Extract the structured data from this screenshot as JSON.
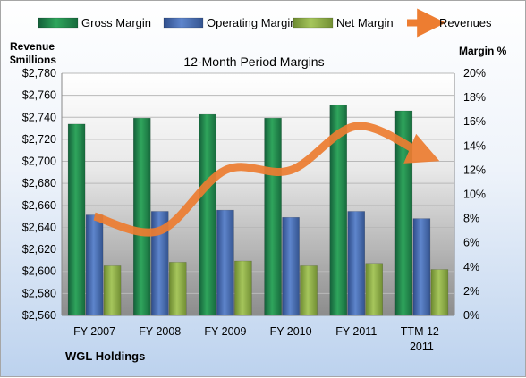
{
  "chart_data": {
    "type": "bar",
    "title": "12-Month Period Margins",
    "company": "WGL Holdings",
    "y_left_label": [
      "Revenue",
      "$millions"
    ],
    "y_right_label": "Margin %",
    "categories": [
      [
        "FY 2007"
      ],
      [
        "FY 2008"
      ],
      [
        "FY 2009"
      ],
      [
        "FY 2010"
      ],
      [
        "FY 2011"
      ],
      [
        "TTM 12-",
        "2011"
      ]
    ],
    "y_left": {
      "min": 2560,
      "max": 2780,
      "step": 20
    },
    "y_right": {
      "min": 0,
      "max": 20,
      "step": 2,
      "suffix": "%"
    },
    "grid": true,
    "legend_position": "top",
    "series": [
      {
        "name": "Gross Margin",
        "kind": "bar",
        "axis": "right",
        "color": "#1e8a4a",
        "values": [
          15.8,
          16.3,
          16.6,
          16.3,
          17.4,
          16.9
        ]
      },
      {
        "name": "Operating Margin",
        "kind": "bar",
        "axis": "right",
        "color": "#4a6fb5",
        "values": [
          8.3,
          8.6,
          8.7,
          8.1,
          8.6,
          8.0
        ]
      },
      {
        "name": "Net Margin",
        "kind": "bar",
        "axis": "right",
        "color": "#8fb04a",
        "values": [
          4.1,
          4.4,
          4.5,
          4.1,
          4.3,
          3.8
        ]
      },
      {
        "name": "Revenues",
        "kind": "line",
        "axis": "left",
        "color": "#ed7d31",
        "values": [
          2650,
          2637,
          2692,
          2692,
          2732,
          2707
        ]
      }
    ]
  }
}
